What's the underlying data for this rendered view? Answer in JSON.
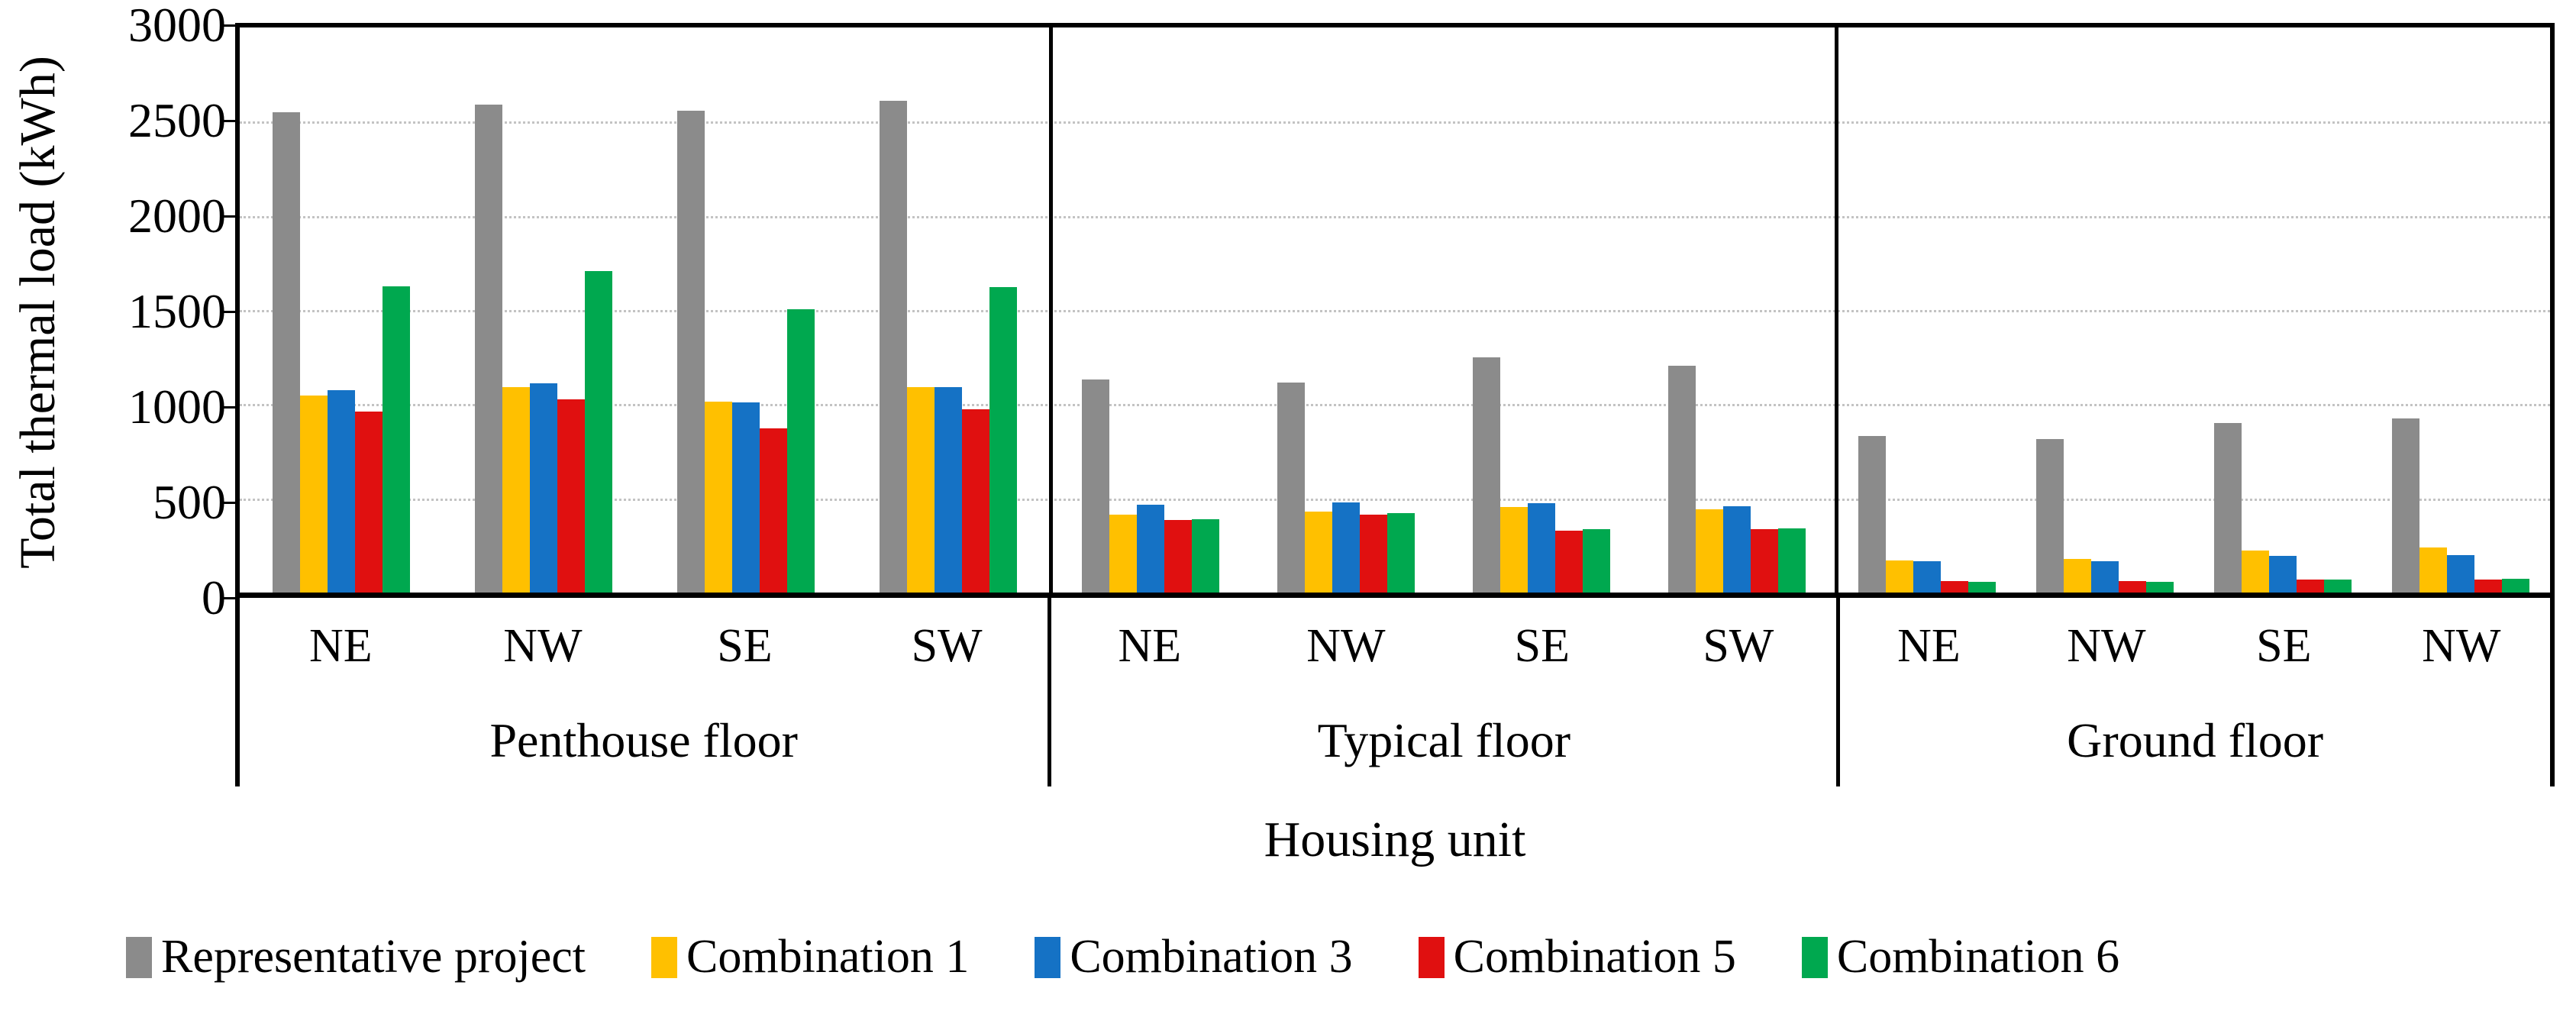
{
  "chart_data": {
    "type": "bar",
    "title": "",
    "ylabel": "Total thermal load (kWh)",
    "xlabel": "Housing unit",
    "ylim": [
      0,
      3000
    ],
    "ytick_interval": 500,
    "ytick_labels": [
      "0",
      "500",
      "1000",
      "1500",
      "2000",
      "2500",
      "3000"
    ],
    "grid": "horizontal dotted gridlines every 500",
    "legend_position": "bottom",
    "groups": [
      {
        "label": "Penthouse floor",
        "categories": [
          "NE",
          "NW",
          "SE",
          "SW"
        ]
      },
      {
        "label": "Typical floor",
        "categories": [
          "NE",
          "NW",
          "SE",
          "SW"
        ]
      },
      {
        "label": "Ground floor",
        "categories": [
          "NE",
          "NW",
          "SE",
          "NW"
        ]
      }
    ],
    "series": [
      {
        "name": "Representative project",
        "color": "#8B8B8B",
        "values": [
          [
            2550,
            2590,
            2560,
            2610
          ],
          [
            1130,
            1115,
            1250,
            1205
          ],
          [
            830,
            815,
            900,
            925
          ]
        ]
      },
      {
        "name": "Combination 1",
        "color": "#FFC000",
        "values": [
          [
            1045,
            1090,
            1015,
            1090
          ],
          [
            415,
            430,
            455,
            440
          ],
          [
            170,
            180,
            225,
            240
          ]
        ]
      },
      {
        "name": "Combination 3",
        "color": "#1572C5",
        "values": [
          [
            1075,
            1110,
            1010,
            1090
          ],
          [
            465,
            480,
            475,
            460
          ],
          [
            165,
            165,
            195,
            200
          ]
        ]
      },
      {
        "name": "Combination 5",
        "color": "#E01010",
        "values": [
          [
            960,
            1025,
            870,
            975
          ],
          [
            385,
            415,
            330,
            335
          ],
          [
            60,
            60,
            70,
            70
          ]
        ]
      },
      {
        "name": "Combination 6",
        "color": "#00A84F",
        "values": [
          [
            1625,
            1705,
            1505,
            1620
          ],
          [
            390,
            420,
            335,
            340
          ],
          [
            55,
            55,
            70,
            75
          ]
        ]
      }
    ]
  }
}
